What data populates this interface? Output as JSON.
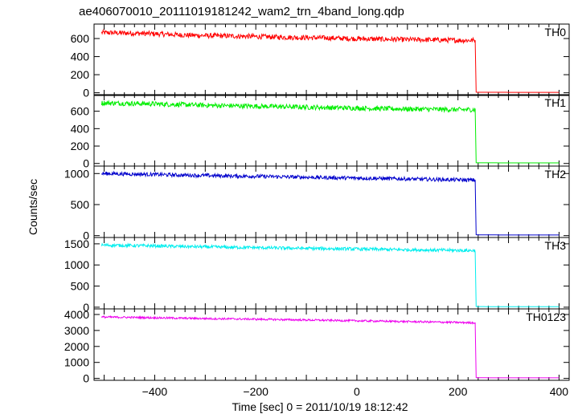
{
  "chart_data": {
    "type": "line",
    "title": "ae406070010_20111019181242_wam2_trn_4band_long.qdp",
    "xlabel": "Time [sec] 0 = 2011/10/19 18:12:42",
    "ylabel": "Counts/sec",
    "xlim": [
      -520,
      420
    ],
    "x_ticks": [
      -400,
      -200,
      0,
      200,
      400
    ],
    "x_tick_labels": [
      "−400",
      "−200",
      "0",
      "200",
      "400"
    ],
    "grid": false,
    "panels": [
      {
        "name": "TH0",
        "color": "#ff0000",
        "ylim": [
          -30,
          760
        ],
        "y_ticks": [
          0,
          200,
          400,
          600
        ],
        "series": {
          "x": [
            -505,
            -450,
            -400,
            -350,
            -300,
            -250,
            -200,
            -150,
            -100,
            -50,
            0,
            50,
            100,
            150,
            200,
            234,
            236,
            300,
            350,
            400
          ],
          "y": [
            665,
            660,
            652,
            640,
            632,
            628,
            622,
            615,
            610,
            605,
            598,
            592,
            588,
            585,
            580,
            580,
            6,
            5,
            5,
            5
          ]
        },
        "noise": 28
      },
      {
        "name": "TH1",
        "color": "#00ee00",
        "ylim": [
          -30,
          790
        ],
        "y_ticks": [
          0,
          200,
          400,
          600
        ],
        "series": {
          "x": [
            -505,
            -450,
            -400,
            -350,
            -300,
            -250,
            -200,
            -150,
            -100,
            -50,
            0,
            50,
            100,
            150,
            200,
            234,
            236,
            300,
            350,
            400
          ],
          "y": [
            695,
            690,
            683,
            676,
            668,
            663,
            658,
            652,
            647,
            641,
            636,
            630,
            626,
            622,
            618,
            618,
            8,
            7,
            7,
            7
          ]
        },
        "noise": 28
      },
      {
        "name": "TH2",
        "color": "#0000cc",
        "ylim": [
          -30,
          1120
        ],
        "y_ticks": [
          0,
          500,
          1000
        ],
        "series": {
          "x": [
            -505,
            -450,
            -400,
            -350,
            -300,
            -250,
            -200,
            -150,
            -100,
            -50,
            0,
            50,
            100,
            150,
            200,
            234,
            236,
            300,
            350,
            400
          ],
          "y": [
            1000,
            992,
            985,
            975,
            968,
            960,
            955,
            948,
            940,
            933,
            927,
            920,
            912,
            905,
            898,
            895,
            12,
            10,
            10,
            10
          ]
        },
        "noise": 30
      },
      {
        "name": "TH3",
        "color": "#00eeee",
        "ylim": [
          -40,
          1650
        ],
        "y_ticks": [
          0,
          500,
          1000,
          1500
        ],
        "series": {
          "x": [
            -505,
            -450,
            -400,
            -350,
            -300,
            -250,
            -200,
            -150,
            -100,
            -50,
            0,
            50,
            100,
            150,
            200,
            234,
            236,
            300,
            350,
            400
          ],
          "y": [
            1470,
            1460,
            1450,
            1438,
            1428,
            1418,
            1410,
            1400,
            1392,
            1385,
            1377,
            1368,
            1360,
            1353,
            1345,
            1340,
            15,
            12,
            12,
            12
          ]
        },
        "noise": 38
      },
      {
        "name": "TH0123",
        "color": "#ee00ee",
        "ylim": [
          -120,
          4350
        ],
        "y_ticks": [
          0,
          1000,
          2000,
          3000,
          4000
        ],
        "series": {
          "x": [
            -505,
            -450,
            -400,
            -350,
            -300,
            -250,
            -200,
            -150,
            -100,
            -50,
            0,
            50,
            100,
            150,
            200,
            234,
            236,
            300,
            350,
            400
          ],
          "y": [
            3840,
            3820,
            3795,
            3770,
            3745,
            3725,
            3705,
            3680,
            3655,
            3630,
            3605,
            3580,
            3555,
            3530,
            3500,
            3480,
            40,
            35,
            35,
            35
          ]
        },
        "noise": 60
      }
    ]
  }
}
